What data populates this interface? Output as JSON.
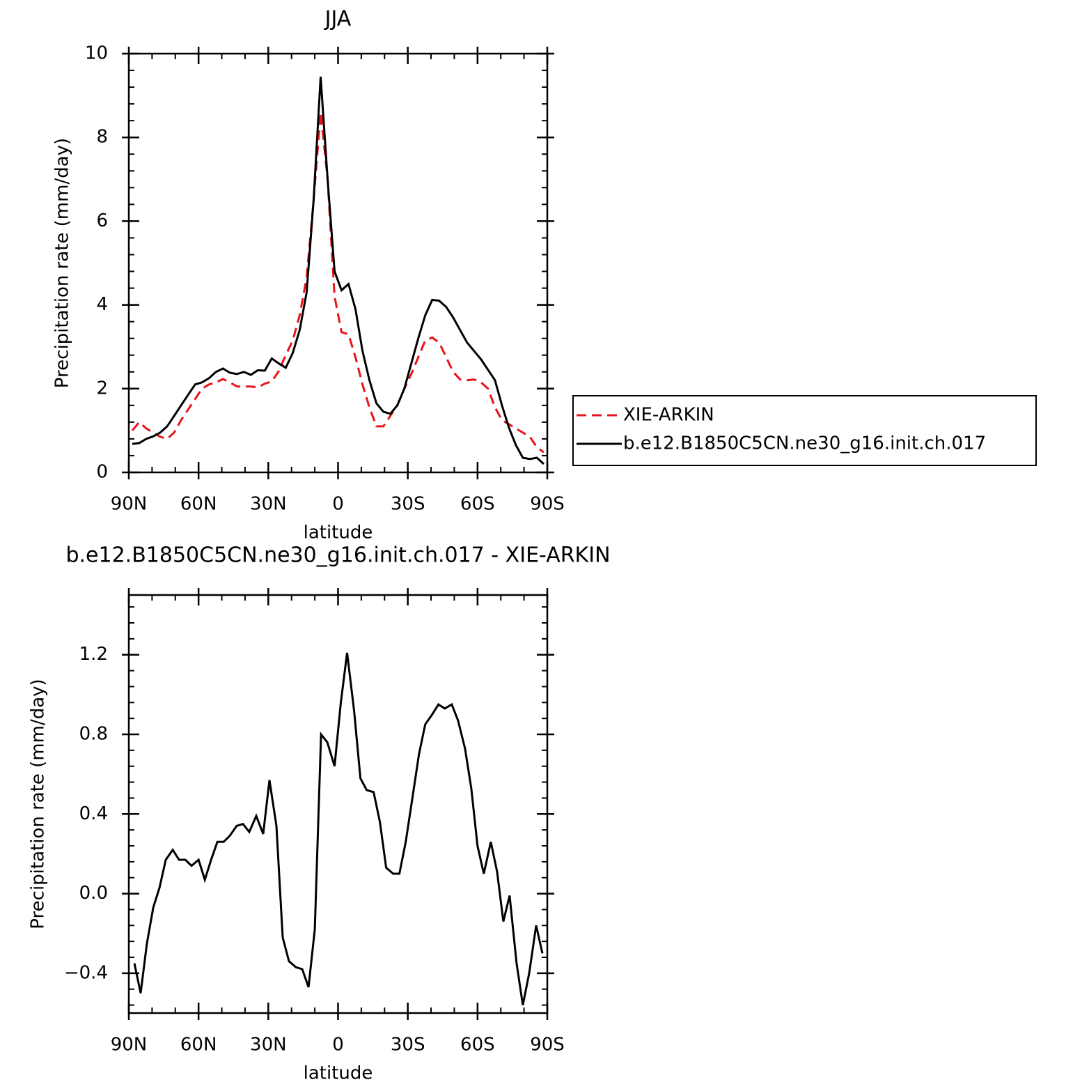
{
  "chart_data": [
    {
      "type": "line",
      "title": "JJA",
      "xlabel": "latitude",
      "ylabel": "Precipitation rate (mm/day)",
      "x": [
        88.5,
        85.5,
        82.5,
        79.5,
        76.5,
        73.5,
        70.5,
        67.5,
        64.5,
        61.5,
        58.5,
        55.5,
        52.5,
        49.5,
        46.5,
        43.5,
        40.5,
        37.5,
        34.5,
        31.5,
        28.5,
        25.5,
        22.5,
        19.5,
        16.5,
        13.5,
        10.5,
        7.5,
        4.5,
        1.5,
        -1.5,
        -4.5,
        -7.5,
        -10.5,
        -13.5,
        -16.5,
        -19.5,
        -22.5,
        -25.5,
        -28.5,
        -31.5,
        -34.5,
        -37.5,
        -40.5,
        -43.5,
        -46.5,
        -49.5,
        -52.5,
        -55.5,
        -58.5,
        -61.5,
        -64.5,
        -67.5,
        -70.5,
        -73.5,
        -76.5,
        -79.5,
        -82.5,
        -85.5,
        -88.5
      ],
      "series": [
        {
          "name": "XIE-ARKIN",
          "color": "#e8141a",
          "line_style": "dashed",
          "values": [
            1.0,
            1.2,
            1.05,
            0.95,
            0.85,
            0.8,
            0.95,
            1.25,
            1.5,
            1.75,
            2.0,
            2.1,
            2.15,
            2.23,
            2.15,
            2.05,
            2.05,
            2.05,
            2.03,
            2.12,
            2.17,
            2.42,
            2.8,
            3.15,
            3.75,
            4.65,
            6.5,
            8.6,
            7.0,
            4.2,
            3.35,
            3.3,
            2.75,
            2.1,
            1.55,
            1.1,
            1.1,
            1.35,
            1.6,
            2.0,
            2.35,
            2.75,
            3.15,
            3.22,
            3.1,
            2.75,
            2.4,
            2.22,
            2.2,
            2.22,
            2.15,
            2.0,
            1.55,
            1.25,
            1.15,
            1.05,
            0.95,
            0.85,
            0.6,
            0.48
          ]
        },
        {
          "name": "b.e12.B1850C5CN.ne30_g16.init.ch.017",
          "color": "#000000",
          "line_style": "solid",
          "values": [
            0.68,
            0.7,
            0.8,
            0.86,
            0.95,
            1.1,
            1.35,
            1.6,
            1.85,
            2.1,
            2.15,
            2.25,
            2.4,
            2.48,
            2.38,
            2.35,
            2.4,
            2.33,
            2.44,
            2.43,
            2.72,
            2.6,
            2.5,
            2.85,
            3.4,
            4.3,
            6.5,
            9.45,
            7.0,
            4.8,
            4.35,
            4.5,
            3.9,
            2.9,
            2.2,
            1.65,
            1.45,
            1.4,
            1.6,
            2.0,
            2.6,
            3.2,
            3.75,
            4.12,
            4.1,
            3.95,
            3.7,
            3.4,
            3.1,
            2.9,
            2.7,
            2.45,
            2.2,
            1.6,
            1.07,
            0.65,
            0.35,
            0.32,
            0.35,
            0.2
          ]
        }
      ],
      "xlim": [
        90,
        -90
      ],
      "xticks": [
        {
          "value": 90,
          "label": "90N"
        },
        {
          "value": 60,
          "label": "60N"
        },
        {
          "value": 30,
          "label": "30N"
        },
        0,
        {
          "value": -30,
          "label": "30S"
        },
        {
          "value": -60,
          "label": "60S"
        },
        {
          "value": -90,
          "label": "90S"
        }
      ],
      "ylim": [
        0,
        10
      ],
      "yticks": [
        0,
        2,
        4,
        6,
        8,
        10
      ],
      "grid": false
    },
    {
      "type": "line",
      "title": "b.e12.B1850C5CN.ne30_g16.init.ch.017 - XIE-ARKIN",
      "xlabel": "latitude",
      "ylabel": "Precipitation rate (mm/day)",
      "x": [
        87.6,
        84.9,
        82.2,
        79.5,
        76.8,
        74.1,
        71.1,
        68.4,
        65.7,
        63.0,
        60.0,
        57.3,
        54.6,
        51.9,
        49.2,
        46.6,
        43.6,
        40.9,
        38.2,
        35.2,
        32.2,
        29.5,
        26.5,
        23.8,
        21.1,
        18.1,
        15.4,
        12.7,
        10.0,
        7.3,
        4.6,
        1.5,
        -1.2,
        -3.9,
        -6.9,
        -9.6,
        -12.3,
        -15.3,
        -18.0,
        -20.7,
        -23.7,
        -26.4,
        -29.1,
        -32.1,
        -34.8,
        -37.5,
        -40.5,
        -43.2,
        -45.9,
        -48.9,
        -51.6,
        -54.6,
        -57.3,
        -60.0,
        -62.7,
        -65.7,
        -68.4,
        -71.1,
        -73.8,
        -76.8,
        -79.5,
        -82.2,
        -85.2,
        -87.9
      ],
      "values": [
        -0.35,
        -0.5,
        -0.25,
        -0.07,
        0.03,
        0.17,
        0.22,
        0.17,
        0.17,
        0.14,
        0.17,
        0.07,
        0.17,
        0.26,
        0.26,
        0.29,
        0.34,
        0.35,
        0.31,
        0.39,
        0.3,
        0.57,
        0.34,
        -0.22,
        -0.34,
        -0.37,
        -0.38,
        -0.47,
        -0.18,
        0.8,
        0.76,
        0.64,
        0.96,
        1.21,
        0.92,
        0.58,
        0.52,
        0.51,
        0.36,
        0.13,
        0.1,
        0.1,
        0.26,
        0.49,
        0.7,
        0.85,
        0.9,
        0.95,
        0.93,
        0.95,
        0.87,
        0.73,
        0.53,
        0.24,
        0.1,
        0.26,
        0.11,
        -0.14,
        -0.01,
        -0.35,
        -0.56,
        -0.4,
        -0.16,
        -0.3
      ],
      "color": "#000000",
      "line_style": "solid",
      "xlim": [
        90,
        -90
      ],
      "xticks": [
        {
          "value": 90,
          "label": "90N"
        },
        {
          "value": 60,
          "label": "60N"
        },
        {
          "value": 30,
          "label": "30N"
        },
        0,
        {
          "value": -30,
          "label": "30S"
        },
        {
          "value": -60,
          "label": "60S"
        },
        {
          "value": -90,
          "label": "90S"
        }
      ],
      "ylim": [
        -0.6,
        1.5
      ],
      "yticks": [
        {
          "value": -0.4,
          "label": "−0.4"
        },
        {
          "value": 0,
          "label": "0.0"
        },
        {
          "value": 0.4,
          "label": "0.4"
        },
        {
          "value": 0.8,
          "label": "0.8"
        },
        {
          "value": 1.2,
          "label": "1.2"
        }
      ],
      "grid": false
    }
  ]
}
